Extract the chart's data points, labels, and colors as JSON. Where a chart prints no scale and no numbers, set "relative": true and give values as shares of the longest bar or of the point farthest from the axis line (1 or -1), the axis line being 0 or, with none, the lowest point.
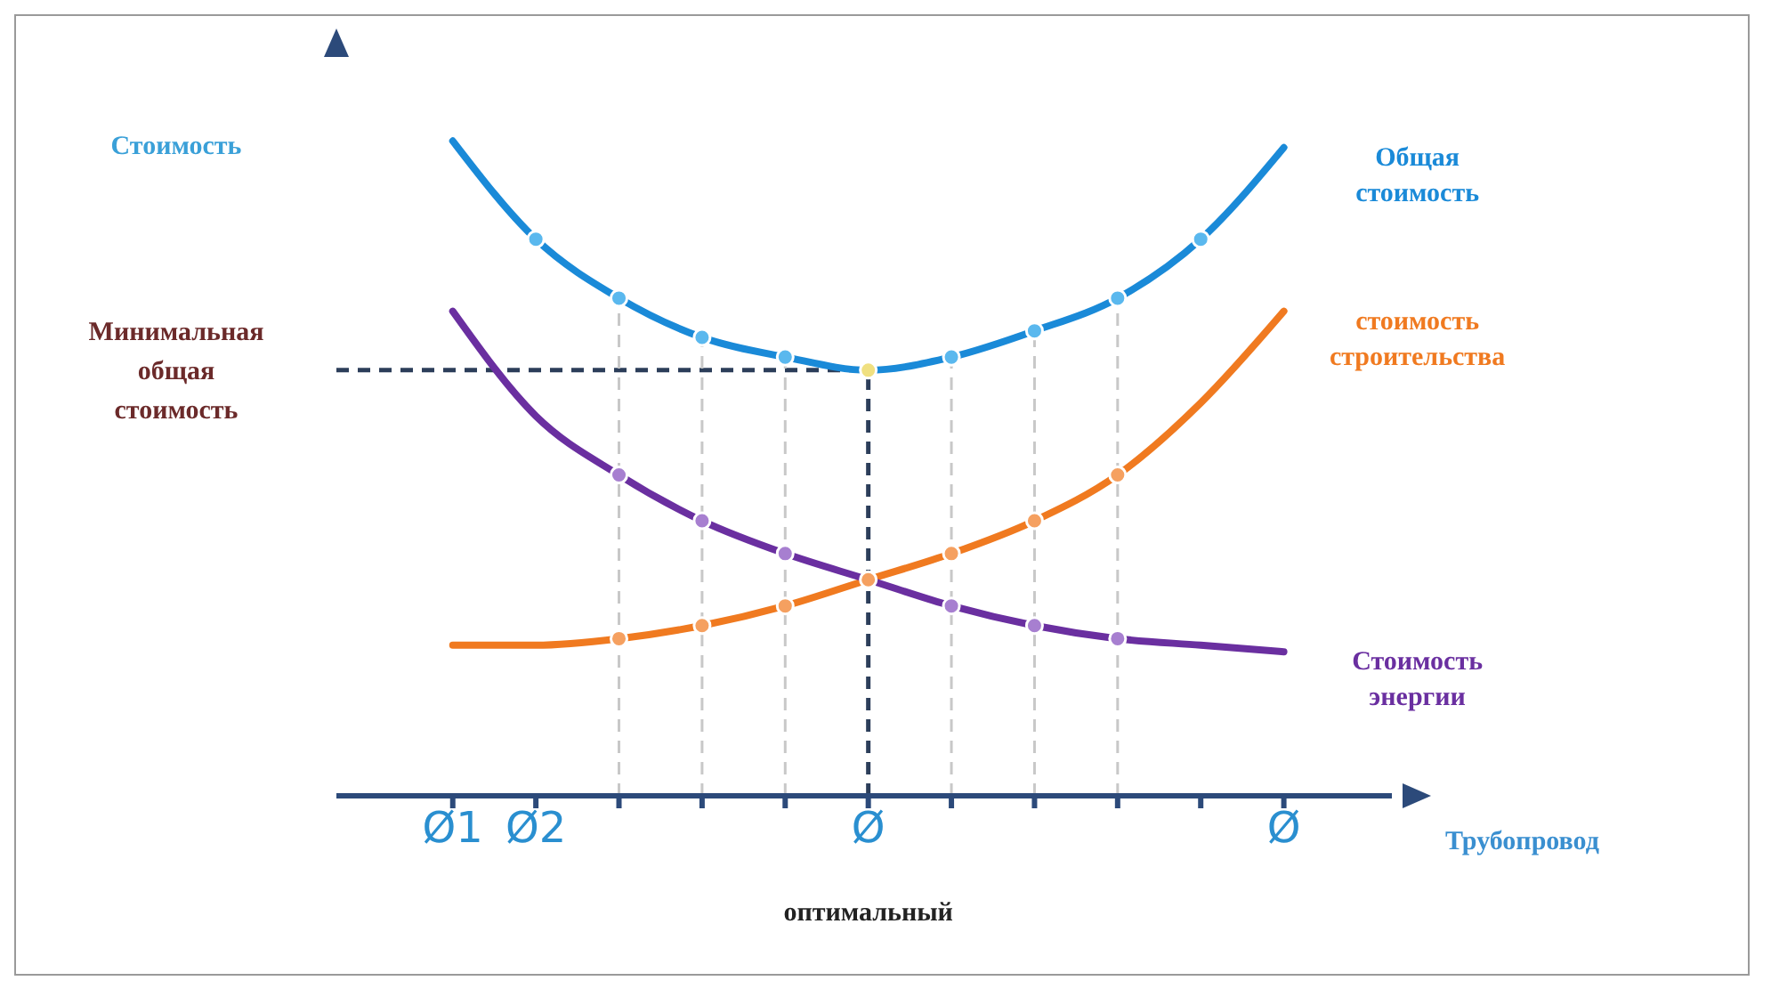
{
  "chart_data": {
    "type": "line",
    "relative": true,
    "ylabel": "Стоимость",
    "xlabel": "Трубопровод",
    "categories": [
      "Ø1",
      "Ø2",
      null,
      null,
      null,
      "Ø",
      null,
      null,
      null,
      null,
      "Ø"
    ],
    "series": [
      {
        "name": "Общая стоимость",
        "color": "#1a8ad8",
        "values": [
          1,
          0.85,
          0.76,
          0.7,
          0.67,
          0.65,
          0.67,
          0.71,
          0.76,
          0.85,
          0.99
        ]
      },
      {
        "name": "стоимость строительства",
        "color": "#f07a20",
        "values": [
          0.23,
          0.23,
          0.24,
          0.26,
          0.29,
          0.33,
          0.37,
          0.42,
          0.49,
          0.6,
          0.74
        ]
      },
      {
        "name": "Стоимость энергии",
        "color": "#6a2fa0",
        "values": [
          0.74,
          0.58,
          0.49,
          0.42,
          0.37,
          0.33,
          0.29,
          0.26,
          0.24,
          0.23,
          0.22
        ]
      },
      {
        "type": "scatter",
        "color": "#5ab8ee",
        "values": [
          null,
          0.85,
          0.76,
          0.7,
          0.67,
          null,
          0.67,
          0.71,
          0.76,
          0.85,
          null
        ]
      },
      {
        "type": "scatter",
        "color": "#f5a060",
        "values": [
          null,
          null,
          0.24,
          0.26,
          0.29,
          0.33,
          0.37,
          0.42,
          0.49,
          null,
          null
        ]
      },
      {
        "type": "scatter",
        "color": "#a77fd0",
        "values": [
          null,
          null,
          0.49,
          0.42,
          0.37,
          null,
          0.29,
          0.26,
          0.24,
          null,
          null
        ]
      },
      {
        "type": "scatter",
        "color": "#f0e080",
        "values": [
          null,
          null,
          null,
          null,
          null,
          0.65,
          null,
          null,
          null,
          null,
          null
        ]
      }
    ],
    "ref_lines": [
      {
        "axis": "y",
        "value": 0.65,
        "label": "Минимальная общая стоимость",
        "color": "#2c3e5a",
        "line_style": "dashed"
      }
    ],
    "annotations": [
      "оптимальный"
    ],
    "grid": "x",
    "legend": false
  }
}
